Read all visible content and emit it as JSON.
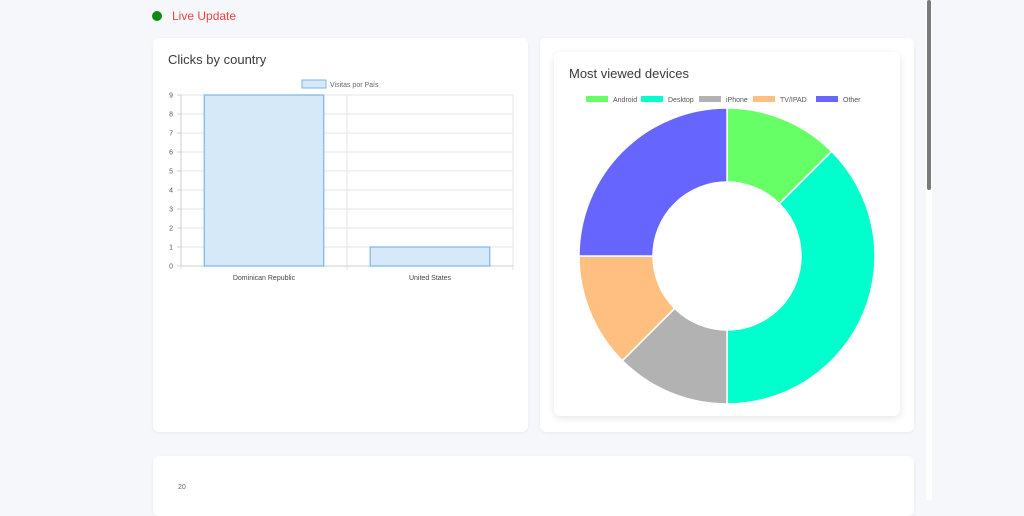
{
  "status": {
    "label": "Live Update",
    "dot_color": "#108a10",
    "text_color": "#f0453f"
  },
  "clicks_card": {
    "title": "Clicks by country"
  },
  "devices_card": {
    "title": "Most viewed devices"
  },
  "bottom_card": {
    "y_tick_top": "20"
  },
  "chart_data": [
    {
      "type": "bar",
      "categories": [
        "Dominican Republic",
        "United States"
      ],
      "series": [
        {
          "name": "Visitas por País",
          "values": [
            9,
            1
          ]
        }
      ],
      "ylim": [
        0,
        9
      ],
      "y_ticks": [
        0,
        1,
        2,
        3,
        4,
        5,
        6,
        7,
        8,
        9
      ],
      "grid": true,
      "legend": "top",
      "bar_fill": "#d6e9f8",
      "bar_stroke": "#7bb6e6"
    },
    {
      "type": "pie",
      "style": "doughnut",
      "labels": [
        "Android",
        "Desktop",
        "iPhone",
        "TV/IPAD",
        "Other"
      ],
      "values": [
        12.5,
        37.5,
        12.5,
        12.5,
        25
      ],
      "colors": [
        "#66ff66",
        "#00ffcc",
        "#b2b2b2",
        "#ffbf80",
        "#6666ff"
      ],
      "legend": "top"
    }
  ]
}
